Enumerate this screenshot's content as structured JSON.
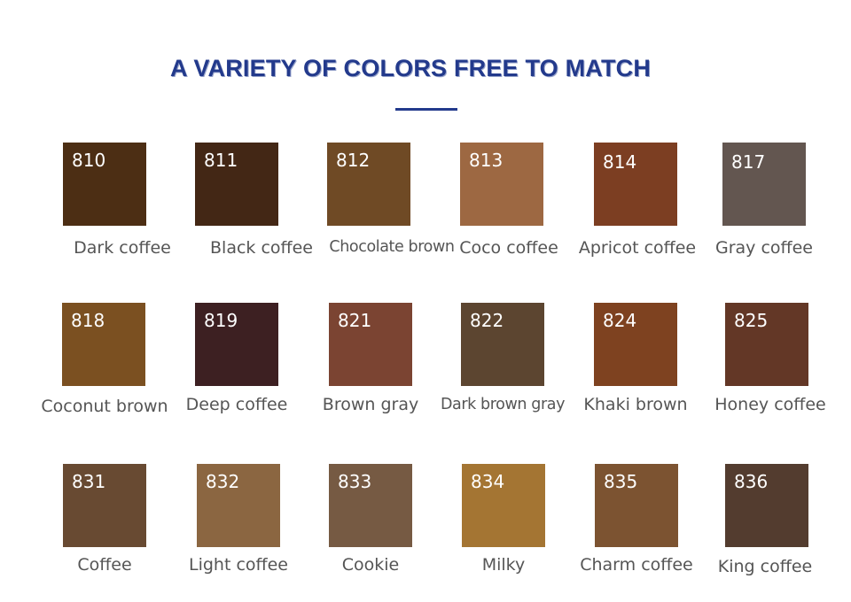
{
  "header": {
    "title": "A VARIETY OF COLORS FREE TO MATCH",
    "accent_color": "#233a8c"
  },
  "swatches": [
    {
      "code": "810",
      "name": "Dark coffee",
      "color": "#4c2e14"
    },
    {
      "code": "811",
      "name": "Black coffee",
      "color": "#432715"
    },
    {
      "code": "812",
      "name": "Chocolate brown",
      "color": "#6f4a25"
    },
    {
      "code": "813",
      "name": "Coco coffee",
      "color": "#9d6842"
    },
    {
      "code": "814",
      "name": "Apricot coffee",
      "color": "#7c3e22"
    },
    {
      "code": "817",
      "name": "Gray coffee",
      "color": "#635650"
    },
    {
      "code": "818",
      "name": "Coconut brown",
      "color": "#7b5021"
    },
    {
      "code": "819",
      "name": "Deep coffee",
      "color": "#3d2022"
    },
    {
      "code": "821",
      "name": "Brown gray",
      "color": "#7b4432"
    },
    {
      "code": "822",
      "name": "Dark brown gray",
      "color": "#5c4530"
    },
    {
      "code": "824",
      "name": "Khaki brown",
      "color": "#7e4220"
    },
    {
      "code": "825",
      "name": "Honey coffee",
      "color": "#633726"
    },
    {
      "code": "831",
      "name": "Coffee",
      "color": "#684a32"
    },
    {
      "code": "832",
      "name": "Light coffee",
      "color": "#8b6641"
    },
    {
      "code": "833",
      "name": "Cookie",
      "color": "#765a43"
    },
    {
      "code": "834",
      "name": "Milky",
      "color": "#a47533"
    },
    {
      "code": "835",
      "name": "Charm coffee",
      "color": "#7c5331"
    },
    {
      "code": "836",
      "name": "King coffee",
      "color": "#533c2f"
    }
  ]
}
